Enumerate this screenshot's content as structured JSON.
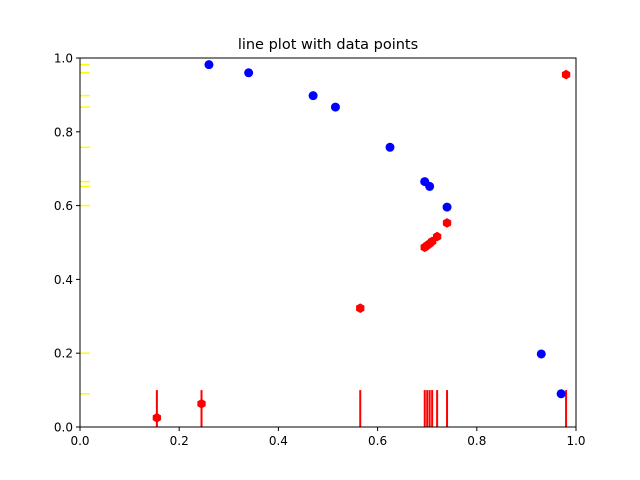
{
  "chart_data": {
    "type": "scatter",
    "title": "line plot with data points",
    "xlabel": "",
    "ylabel": "",
    "xlim": [
      0.0,
      1.0
    ],
    "ylim": [
      0.0,
      1.0
    ],
    "grid": false,
    "x_ticks": [
      {
        "value": 0.0,
        "label": "0.0"
      },
      {
        "value": 0.2,
        "label": "0.2"
      },
      {
        "value": 0.4,
        "label": "0.4"
      },
      {
        "value": 0.6,
        "label": "0.6"
      },
      {
        "value": 0.8,
        "label": "0.8"
      },
      {
        "value": 1.0,
        "label": "1.0"
      }
    ],
    "y_ticks": [
      {
        "value": 0.0,
        "label": "0.0"
      },
      {
        "value": 0.2,
        "label": "0.2"
      },
      {
        "value": 0.4,
        "label": "0.4"
      },
      {
        "value": 0.6,
        "label": "0.6"
      },
      {
        "value": 0.8,
        "label": "0.8"
      },
      {
        "value": 1.0,
        "label": "1.0"
      }
    ],
    "series": [
      {
        "kind": "markers",
        "color": "#0000ff",
        "marker": "circle",
        "x": [
          0.26,
          0.34,
          0.47,
          0.515,
          0.625,
          0.695,
          0.705,
          0.74,
          0.93,
          0.97
        ],
        "y": [
          0.982,
          0.96,
          0.898,
          0.867,
          0.758,
          0.665,
          0.652,
          0.596,
          0.198,
          0.09
        ]
      },
      {
        "kind": "markers",
        "color": "#ff0000",
        "marker": "hexagon",
        "x": [
          0.155,
          0.245,
          0.565,
          0.695,
          0.7,
          0.705,
          0.71,
          0.72,
          0.74,
          0.98
        ],
        "y": [
          0.025,
          0.063,
          0.322,
          0.487,
          0.492,
          0.497,
          0.503,
          0.516,
          0.553,
          0.955
        ]
      },
      {
        "kind": "x_rug",
        "color": "#ff0000",
        "height": 0.1,
        "x": [
          0.155,
          0.245,
          0.565,
          0.695,
          0.7,
          0.705,
          0.71,
          0.72,
          0.74,
          0.98
        ]
      },
      {
        "kind": "y_rug",
        "color": "#ffff00",
        "x_extent": [
          0.0,
          0.02
        ],
        "y": [
          0.09,
          0.2,
          0.6,
          0.652,
          0.665,
          0.758,
          0.867,
          0.898,
          0.96,
          0.982
        ]
      }
    ]
  }
}
